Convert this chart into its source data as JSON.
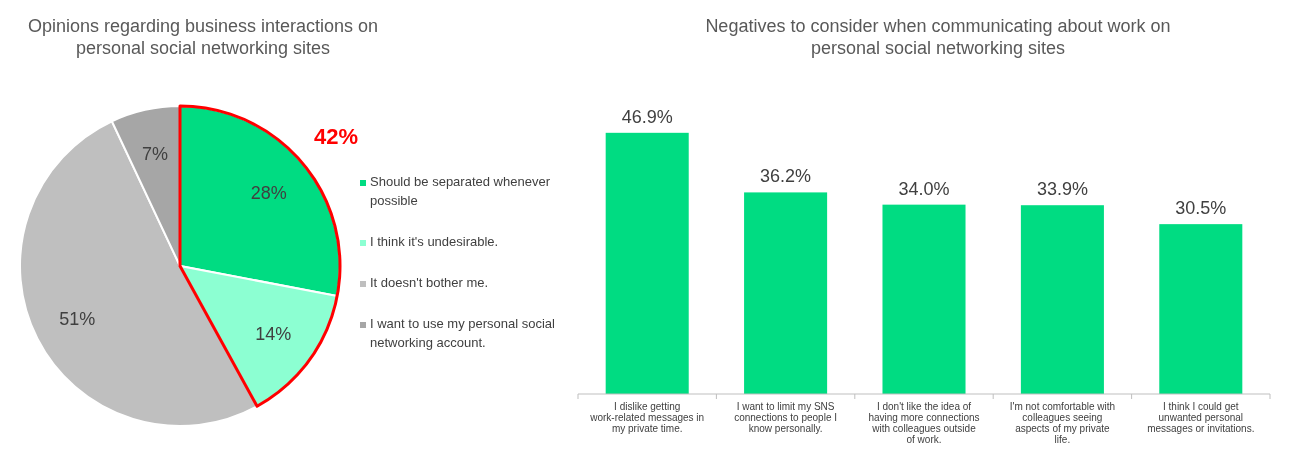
{
  "chart_data": [
    {
      "type": "pie",
      "title": "Opinions regarding business interactions on personal social networking sites",
      "categories": [
        "Should be separated whenever possible",
        "I think it's undesirable.",
        "It doesn't bother me.",
        "I want to use my personal social networking account."
      ],
      "values": [
        28,
        14,
        51,
        7
      ],
      "colors": [
        "#00dc82",
        "#8cffd2",
        "#bfbfbf",
        "#a6a6a6"
      ],
      "value_labels": [
        "28%",
        "14%",
        "51%",
        "7%"
      ],
      "legend": "right",
      "annotations": [
        "42%"
      ]
    },
    {
      "type": "bar",
      "title": "Negatives to consider when communicating about work on personal social networking sites",
      "categories": [
        "I dislike getting work-related messages in my private time.",
        "I want to limit my SNS connections to people I know personally.",
        "I don't like the idea of having more connections with colleagues outside of work.",
        "I'm not comfortable with colleagues seeing aspects of my private life.",
        "I think I could get unwanted personal messages or invitations."
      ],
      "values": [
        46.9,
        36.2,
        34.0,
        33.9,
        30.5
      ],
      "value_labels": [
        "46.9%",
        "36.2%",
        "34.0%",
        "33.9%",
        "30.5%"
      ],
      "color": "#00dc82"
    }
  ]
}
